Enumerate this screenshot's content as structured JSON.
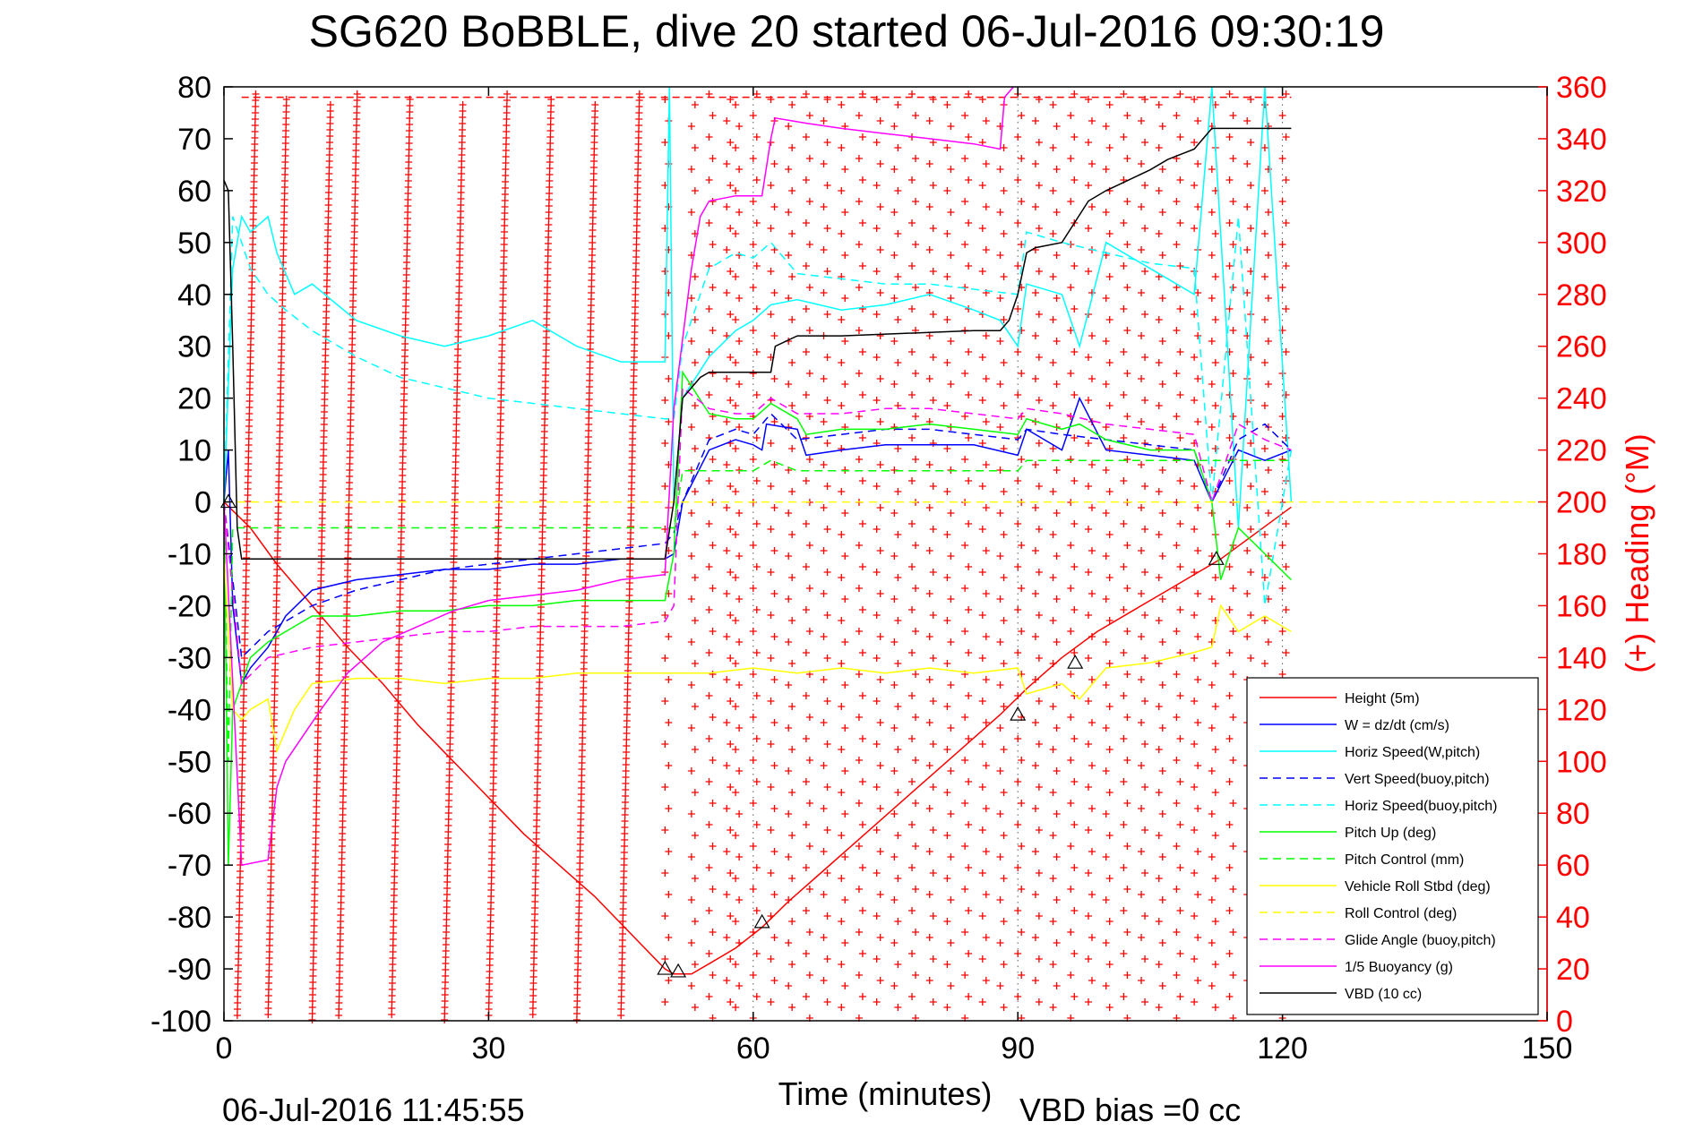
{
  "chart_data": {
    "type": "line",
    "title": "SG620 BoBBLE, dive 20 started 06-Jul-2016 09:30:19",
    "xlabel": "Time (minutes)",
    "ylabel_right": "(+) Heading (°M)",
    "xlim": [
      0,
      150
    ],
    "ylim": [
      -100,
      80
    ],
    "y2lim": [
      0,
      360
    ],
    "xticks": [
      0,
      30,
      60,
      90,
      120,
      150
    ],
    "yticks": [
      80,
      70,
      60,
      50,
      40,
      30,
      20,
      10,
      0,
      -10,
      -20,
      -30,
      -40,
      -50,
      -60,
      -70,
      -80,
      -90,
      -100
    ],
    "y2ticks": [
      360,
      340,
      320,
      300,
      280,
      260,
      240,
      220,
      200,
      180,
      160,
      140,
      120,
      100,
      80,
      60,
      40,
      20,
      0
    ],
    "grid_x": [
      60,
      90,
      120
    ],
    "footer_left": "06-Jul-2016 11:45:55",
    "footer_right": "VBD bias =0 cc",
    "legend_position": "bottom-right",
    "colors": {
      "red": "#ff0000",
      "blue": "#0000ff",
      "cyan": "#00ffff",
      "green": "#00ff00",
      "yellow": "#ffff00",
      "magenta": "#ff00ff",
      "black": "#000000"
    },
    "series": [
      {
        "name": "Height (5m)",
        "color": "#ff0000",
        "dash": "solid",
        "x": [
          0,
          3,
          6,
          10,
          14,
          18,
          22,
          26,
          30,
          34,
          38,
          42,
          46,
          50,
          51,
          53,
          55,
          58,
          61,
          64,
          68,
          72,
          76,
          80,
          84,
          88,
          91,
          95,
          99,
          103,
          107,
          111,
          113,
          117,
          121
        ],
        "y": [
          0,
          -5,
          -12,
          -20,
          -28,
          -35,
          -43,
          -50,
          -57,
          -64,
          -70,
          -76,
          -83,
          -90,
          -91,
          -91,
          -89,
          -86,
          -82,
          -77,
          -71,
          -65,
          -59,
          -53,
          -47,
          -41,
          -36,
          -30,
          -25,
          -21,
          -17,
          -13,
          -11,
          -6,
          -1
        ]
      },
      {
        "name": "W = dz/dt (cm/s)",
        "color": "#0000ff",
        "dash": "solid",
        "x": [
          0,
          0.5,
          1,
          2,
          3,
          5,
          7,
          10,
          15,
          20,
          25,
          30,
          35,
          40,
          45,
          50,
          51,
          52,
          55,
          58,
          60,
          61,
          61.5,
          65,
          66,
          70,
          75,
          80,
          85,
          90,
          91,
          95,
          97,
          100,
          105,
          110,
          112,
          115,
          118,
          121
        ],
        "y": [
          0,
          10,
          -20,
          -35,
          -32,
          -28,
          -22,
          -17,
          -15,
          -14,
          -13,
          -13,
          -12,
          -12,
          -11,
          -11,
          -10,
          0,
          10,
          12,
          11,
          10,
          15,
          14,
          9,
          10,
          11,
          11,
          11,
          9,
          14,
          10,
          20,
          10,
          9,
          8,
          0,
          10,
          8,
          10
        ]
      },
      {
        "name": "Horiz Speed(W,pitch)",
        "color": "#00ffff",
        "dash": "solid",
        "x": [
          0,
          1,
          2,
          3,
          5,
          6,
          8,
          10,
          15,
          20,
          25,
          30,
          35,
          40,
          45,
          50,
          50.5,
          51,
          52,
          55,
          58,
          60,
          62,
          65,
          70,
          75,
          80,
          85,
          88,
          90,
          91,
          95,
          97,
          100,
          105,
          110,
          112,
          115,
          118,
          121
        ],
        "y": [
          0,
          45,
          55,
          52,
          55,
          48,
          40,
          42,
          35,
          32,
          30,
          32,
          35,
          30,
          27,
          27,
          80,
          0,
          20,
          28,
          33,
          35,
          38,
          39,
          37,
          38,
          40,
          37,
          35,
          30,
          42,
          40,
          30,
          50,
          45,
          40,
          80,
          -5,
          80,
          0
        ]
      },
      {
        "name": "Vert Speed(buoy,pitch)",
        "color": "#0000ff",
        "dash": "dashed",
        "x": [
          0,
          2,
          5,
          10,
          15,
          20,
          25,
          30,
          35,
          40,
          45,
          50,
          51,
          52,
          55,
          58,
          60,
          62,
          65,
          70,
          75,
          80,
          85,
          90,
          91,
          95,
          100,
          105,
          110,
          112,
          115,
          118,
          121
        ],
        "y": [
          0,
          -30,
          -25,
          -20,
          -17,
          -15,
          -13,
          -12,
          -11,
          -10,
          -9,
          -8,
          -6,
          0,
          12,
          14,
          13,
          17,
          12,
          13,
          14,
          14,
          13,
          12,
          14,
          13,
          12,
          11,
          10,
          0,
          12,
          15,
          10
        ]
      },
      {
        "name": "Horiz Speed(buoy,pitch)",
        "color": "#00ffff",
        "dash": "dashed",
        "x": [
          0,
          1,
          2,
          3,
          5,
          7,
          10,
          15,
          20,
          25,
          30,
          35,
          40,
          45,
          50,
          51,
          52,
          55,
          58,
          60,
          62,
          65,
          70,
          75,
          80,
          85,
          90,
          91,
          95,
          100,
          105,
          110,
          112,
          115,
          118,
          121
        ],
        "y": [
          0,
          55,
          50,
          45,
          40,
          37,
          33,
          28,
          24,
          22,
          20,
          19,
          18,
          17,
          16,
          16,
          30,
          45,
          48,
          47,
          50,
          44,
          43,
          42,
          42,
          41,
          40,
          52,
          50,
          48,
          46,
          45,
          0,
          55,
          -20,
          10
        ]
      },
      {
        "name": "Pitch Up (deg)",
        "color": "#00ff00",
        "dash": "solid",
        "x": [
          0,
          0.5,
          1,
          2,
          3,
          5,
          7,
          10,
          15,
          20,
          25,
          30,
          35,
          40,
          45,
          50,
          51,
          52,
          55,
          58,
          60,
          62,
          65,
          66,
          70,
          75,
          80,
          85,
          90,
          91,
          95,
          97,
          100,
          105,
          110,
          112,
          113,
          115,
          118,
          121
        ],
        "y": [
          0,
          -70,
          -40,
          -35,
          -30,
          -27,
          -25,
          -22,
          -22,
          -21,
          -21,
          -20,
          -20,
          -19,
          -19,
          -19,
          -10,
          25,
          17,
          16,
          16,
          19,
          16,
          13,
          14,
          14,
          15,
          14,
          13,
          16,
          14,
          15,
          12,
          10,
          10,
          0,
          -15,
          -5,
          -10,
          -15
        ]
      },
      {
        "name": "Pitch Control (mm)",
        "color": "#00ff00",
        "dash": "dashed",
        "x": [
          0,
          0.5,
          1,
          2,
          50,
          51,
          52,
          60,
          62,
          65,
          90,
          91,
          121
        ],
        "y": [
          0,
          -50,
          -5,
          -5,
          -5,
          -5,
          6,
          6,
          8,
          6,
          6,
          8,
          8
        ]
      },
      {
        "name": "Vehicle Roll Stbd (deg)",
        "color": "#ffff00",
        "dash": "solid",
        "x": [
          0,
          1,
          2,
          3,
          5,
          6,
          8,
          10,
          15,
          20,
          25,
          30,
          35,
          40,
          45,
          50,
          55,
          60,
          65,
          70,
          75,
          80,
          85,
          90,
          91,
          95,
          97,
          100,
          105,
          110,
          112,
          113,
          115,
          118,
          121
        ],
        "y": [
          -10,
          -40,
          -42,
          -40,
          -38,
          -48,
          -40,
          -35,
          -34,
          -34,
          -35,
          -34,
          -34,
          -33,
          -33,
          -33,
          -33,
          -32,
          -33,
          -32,
          -33,
          -32,
          -33,
          -32,
          -37,
          -35,
          -38,
          -32,
          -31,
          -29,
          -28,
          -20,
          -25,
          -22,
          -25
        ]
      },
      {
        "name": "Roll Control (deg)",
        "color": "#ffff00",
        "dash": "dashed",
        "x": [
          0,
          150
        ],
        "y": [
          0,
          0
        ]
      },
      {
        "name": "Glide Angle (buoy,pitch)",
        "color": "#ff00ff",
        "dash": "dashed",
        "x": [
          0,
          2,
          5,
          10,
          15,
          20,
          25,
          30,
          35,
          40,
          45,
          50,
          51,
          52,
          55,
          58,
          60,
          62,
          65,
          70,
          75,
          80,
          85,
          90,
          91,
          95,
          100,
          105,
          110,
          112,
          115,
          118,
          121
        ],
        "y": [
          0,
          -35,
          -30,
          -28,
          -27,
          -26,
          -25,
          -25,
          -24,
          -24,
          -24,
          -23,
          -20,
          22,
          18,
          17,
          17,
          20,
          17,
          17,
          18,
          18,
          17,
          16,
          18,
          17,
          15,
          14,
          13,
          0,
          15,
          12,
          10
        ]
      },
      {
        "name": "1/5 Buoyancy (g)",
        "color": "#ff00ff",
        "dash": "solid",
        "x": [
          0,
          2,
          5,
          6,
          7,
          9,
          11,
          14,
          18,
          22,
          26,
          30,
          35,
          40,
          45,
          50,
          51,
          53,
          54,
          55,
          58,
          61,
          62,
          62.5,
          66,
          70,
          75,
          80,
          85,
          88,
          88.5,
          89.5
        ],
        "y": [
          0,
          -70,
          -69,
          -55,
          -50,
          -45,
          -40,
          -33,
          -27,
          -24,
          -21,
          -19,
          -18,
          -17,
          -15,
          -14,
          18,
          45,
          55,
          58,
          59,
          59,
          70,
          74,
          73,
          72,
          71,
          70,
          69,
          68,
          78,
          80
        ]
      },
      {
        "name": "VBD (10 cc)",
        "color": "#000000",
        "dash": "solid",
        "x": [
          0,
          0.5,
          1,
          1.5,
          2,
          10,
          20,
          30,
          40,
          50,
          51,
          52,
          54,
          55,
          58,
          61,
          62,
          62.5,
          65,
          70,
          85,
          88,
          89,
          90,
          91,
          92,
          95,
          98,
          100,
          105,
          107,
          110,
          111,
          112,
          121
        ],
        "y": [
          62,
          60,
          30,
          -5,
          -11,
          -11,
          -11,
          -11,
          -11,
          -11,
          0,
          20,
          24,
          25,
          25,
          25,
          25,
          30,
          32,
          32,
          33,
          33,
          35,
          40,
          48,
          49,
          50,
          58,
          60,
          64,
          66,
          68,
          70,
          72,
          72
        ]
      }
    ],
    "heading_series": {
      "name": "Heading",
      "color": "#ff0000",
      "columns_x": [
        1.5,
        5,
        10,
        13,
        19,
        25,
        30,
        35,
        40,
        45,
        50,
        53,
        55,
        57,
        58,
        60,
        62,
        64,
        66,
        68,
        70,
        72,
        74,
        76,
        78,
        80,
        82,
        84,
        86,
        88,
        90,
        92,
        94,
        96,
        98,
        100,
        102,
        104,
        106,
        108,
        110,
        112,
        114,
        116,
        118,
        120
      ]
    },
    "reference_lines": [
      {
        "name": "upper-limit",
        "color": "#ff0000",
        "dash": "dashed",
        "y": 78,
        "x": [
          2,
          121
        ]
      }
    ],
    "markers": [
      {
        "x": 0.5,
        "y": 0
      },
      {
        "x": 50,
        "y": -90
      },
      {
        "x": 51.5,
        "y": -90.5
      },
      {
        "x": 61,
        "y": -81
      },
      {
        "x": 90,
        "y": -41
      },
      {
        "x": 96.5,
        "y": -31
      },
      {
        "x": 112.5,
        "y": -11
      }
    ]
  }
}
